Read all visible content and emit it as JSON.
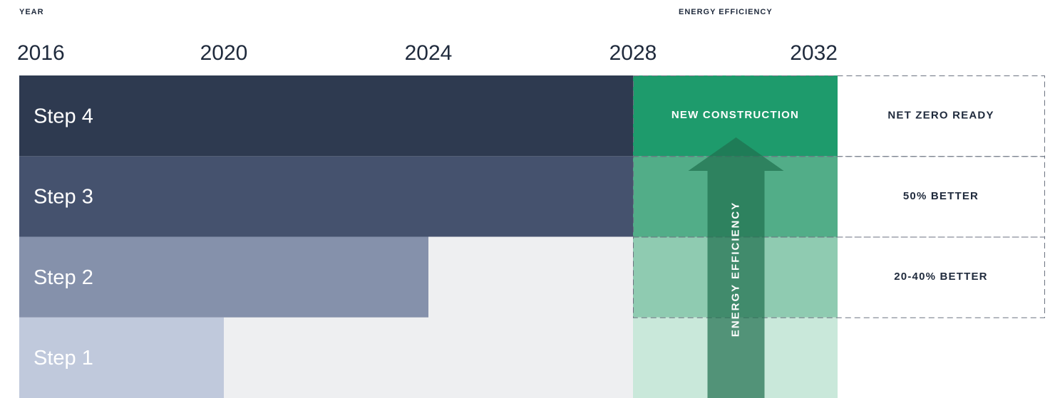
{
  "chart_data": {
    "type": "bar",
    "orientation": "horizontal",
    "x_label": "YEAR",
    "efficiency_label": "ENERGY EFFICIENCY",
    "categories": [
      "Step 1",
      "Step 2",
      "Step 3",
      "Step 4"
    ],
    "values": [
      2020,
      2024,
      2028,
      2028
    ],
    "colors": [
      "#c0c9dc",
      "#8591ab",
      "#45526e",
      "#2e3a50"
    ],
    "green_colors": [
      "#c9e8da",
      "#8fcbb1",
      "#52ad88",
      "#1e9b6c"
    ],
    "xlim": [
      2016,
      2032
    ],
    "xticks": [
      2016,
      2020,
      2024,
      2028,
      2032
    ],
    "column_label": "NEW CONSTRUCTION",
    "targets": [
      "20-40% BETTER",
      "50% BETTER",
      "NET ZERO READY"
    ],
    "arrow_label": "ENERGY EFFICIENCY"
  }
}
